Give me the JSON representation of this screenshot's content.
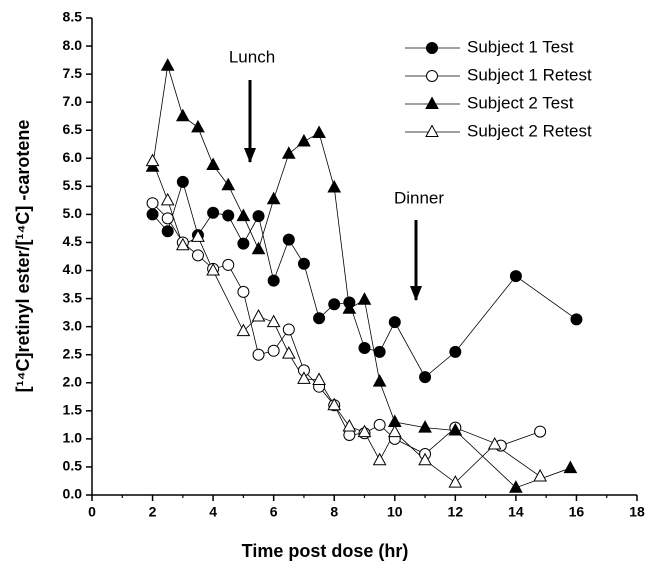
{
  "chart_data": {
    "type": "line",
    "x_label": "Time post dose (hr)",
    "y_label": "[¹⁴C]retinyl ester/[¹⁴C]     -carotene",
    "annotations": [
      "Lunch",
      "Dinner"
    ],
    "xlim": [
      0,
      18
    ],
    "xticks": [
      0,
      2,
      4,
      6,
      8,
      10,
      12,
      14,
      16,
      18
    ],
    "ylim": [
      0,
      8.5
    ],
    "yticks": [
      {
        "value": 0,
        "label": "0.0"
      },
      0.5,
      {
        "value": 1,
        "label": "1.0"
      },
      1.5,
      {
        "value": 2,
        "label": "2.0"
      },
      2.5,
      {
        "value": 3,
        "label": "3.0"
      },
      3.5,
      {
        "value": 4,
        "label": "4.0"
      },
      4.5,
      {
        "value": 5,
        "label": "5.0"
      },
      5.5,
      {
        "value": 6,
        "label": "6.0"
      },
      6.5,
      {
        "value": 7,
        "label": "7.0"
      },
      7.5,
      {
        "value": 8,
        "label": "8.0"
      },
      8.5
    ],
    "legend": "top-right",
    "series": [
      {
        "name": "Subject 1 Test",
        "color": "#000000",
        "marker": "circle",
        "filled": true,
        "x": [
          2,
          2.5,
          3,
          3.5,
          4,
          4.5,
          5,
          5.5,
          6,
          6.5,
          7,
          7.5,
          8,
          8.5,
          9,
          9.5,
          10,
          11,
          12,
          14,
          16
        ],
        "values": [
          5.0,
          4.7,
          5.58,
          4.63,
          5.03,
          4.98,
          4.48,
          4.97,
          3.82,
          4.55,
          4.12,
          3.15,
          3.4,
          3.43,
          2.62,
          2.55,
          3.08,
          2.1,
          2.55,
          3.9,
          3.13
        ]
      },
      {
        "name": "Subject 1 Retest",
        "color": "#000000",
        "marker": "circle",
        "filled": false,
        "x": [
          2,
          2.5,
          3,
          3.5,
          4,
          4.5,
          5,
          5.5,
          6,
          6.5,
          7,
          7.5,
          8,
          8.5,
          9,
          9.5,
          10,
          11,
          12,
          13.5,
          14.8
        ],
        "values": [
          5.2,
          4.93,
          4.5,
          4.27,
          4.03,
          4.1,
          3.62,
          2.5,
          2.57,
          2.95,
          2.22,
          1.93,
          1.6,
          1.07,
          1.1,
          1.25,
          1.0,
          0.73,
          1.2,
          0.88,
          1.13
        ]
      },
      {
        "name": "Subject 2 Test",
        "color": "#000000",
        "marker": "triangle",
        "filled": true,
        "x": [
          2,
          2.5,
          3,
          3.5,
          4,
          4.5,
          5,
          5.5,
          6,
          6.5,
          7,
          7.5,
          8,
          8.5,
          9,
          9.5,
          10,
          11,
          12,
          14,
          15.8
        ],
        "values": [
          5.85,
          7.65,
          6.75,
          6.55,
          5.88,
          5.52,
          4.97,
          4.38,
          5.27,
          6.08,
          6.3,
          6.45,
          5.48,
          3.32,
          3.48,
          2.02,
          1.3,
          1.2,
          1.15,
          0.13,
          0.48
        ]
      },
      {
        "name": "Subject 2 Retest",
        "color": "#000000",
        "marker": "triangle",
        "filled": false,
        "x": [
          2,
          2.5,
          3,
          3.5,
          4,
          5,
          5.5,
          6,
          6.5,
          7,
          7.5,
          8,
          8.5,
          9,
          9.5,
          10,
          11,
          12,
          13.3,
          14.8
        ],
        "values": [
          5.95,
          5.25,
          4.45,
          4.6,
          4.0,
          2.92,
          3.18,
          3.08,
          2.52,
          2.07,
          2.05,
          1.6,
          1.22,
          1.12,
          0.62,
          1.12,
          0.62,
          0.22,
          0.9,
          0.33
        ]
      }
    ]
  }
}
